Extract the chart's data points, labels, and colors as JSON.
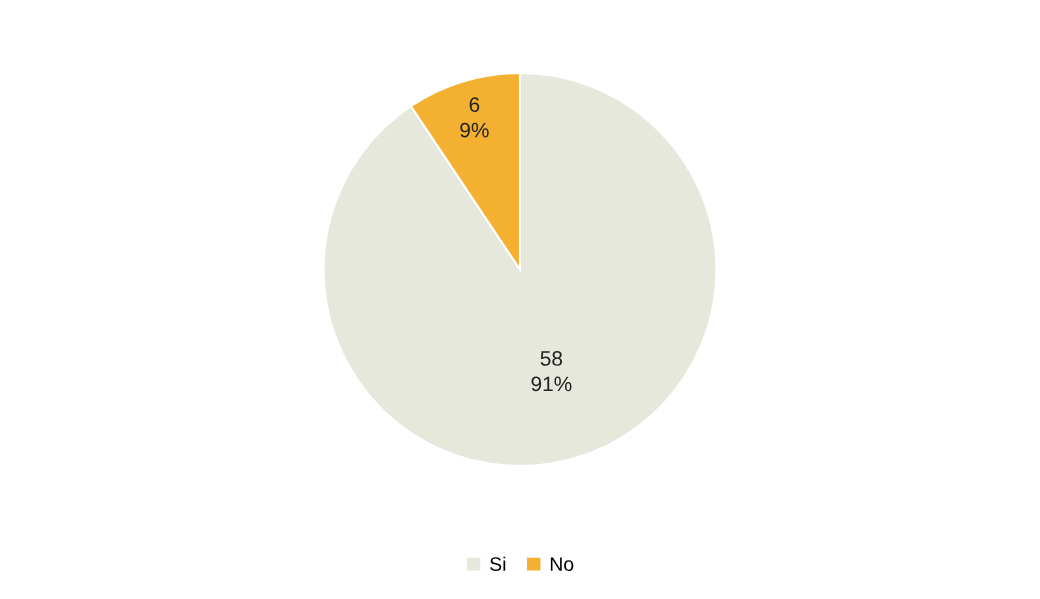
{
  "chart_data": {
    "type": "pie",
    "categories": [
      "Si",
      "No"
    ],
    "values": [
      58,
      6
    ],
    "colors": [
      "#e6e8dc",
      "#f4b030"
    ],
    "value_labels": [
      "58\n91%",
      "6\n9%"
    ],
    "legend": "bottom"
  }
}
